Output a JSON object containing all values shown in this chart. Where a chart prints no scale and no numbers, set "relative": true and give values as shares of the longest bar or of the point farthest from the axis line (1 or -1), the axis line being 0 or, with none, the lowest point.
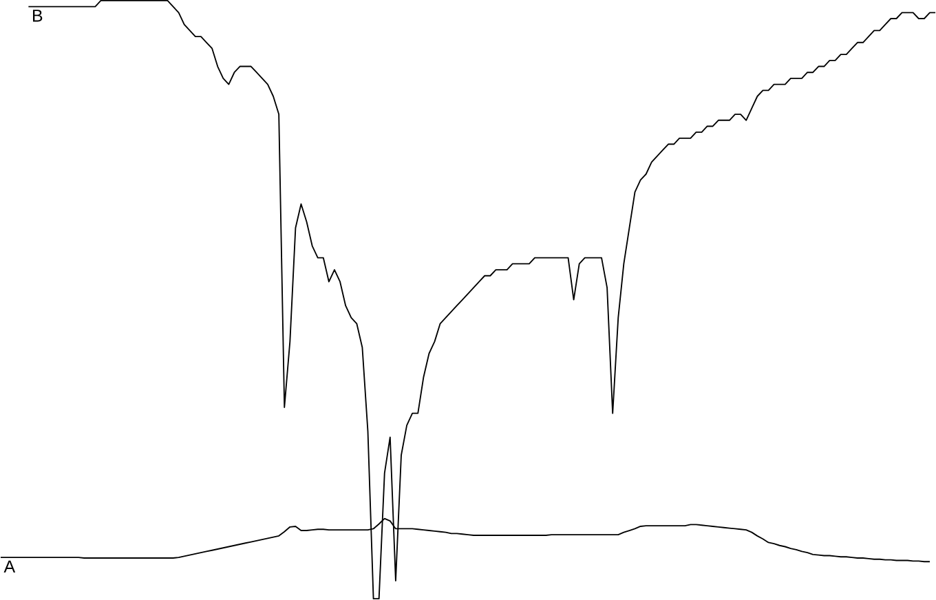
{
  "chart_data": {
    "type": "line",
    "relative": true,
    "legend": false,
    "marker": "none",
    "line_style": "solid",
    "categories": [
      null,
      null,
      null,
      null,
      null,
      null,
      null,
      null,
      null,
      null,
      null,
      null,
      null,
      null,
      null,
      null,
      null,
      null,
      null,
      null,
      null,
      null,
      null,
      null,
      null,
      null,
      null,
      null,
      null,
      null,
      null,
      null,
      null,
      null,
      null,
      null,
      null,
      null,
      null,
      null,
      null,
      null,
      null,
      null,
      null,
      null,
      null,
      null,
      null,
      null,
      null,
      null,
      null,
      null,
      null,
      null,
      null,
      null,
      null,
      null,
      null,
      null,
      null,
      null,
      null,
      null,
      null,
      null,
      null,
      null,
      null,
      null,
      null,
      null,
      null,
      null,
      null,
      null,
      null,
      null,
      null,
      null,
      null,
      null,
      null,
      null,
      null,
      null,
      null,
      null,
      null,
      null,
      null,
      null,
      null,
      null,
      null,
      null,
      null,
      null,
      null,
      null,
      null,
      null,
      null,
      null,
      null,
      null,
      null,
      null,
      null,
      null,
      null,
      null,
      null,
      null,
      null,
      null,
      null,
      null,
      null,
      null,
      null,
      null,
      null,
      null,
      null,
      null,
      null,
      null,
      null,
      null,
      null,
      null,
      null,
      null,
      null,
      null,
      null,
      null,
      null,
      null,
      null,
      null,
      null,
      null,
      null,
      null,
      null,
      null,
      null,
      null,
      null,
      null,
      null,
      null,
      null,
      null,
      null,
      null,
      null,
      null,
      null,
      null,
      null,
      null,
      null,
      null,
      null
    ],
    "series": [
      {
        "name": "B",
        "color": "#000000",
        "values": [
          null,
          null,
          null,
          null,
          null,
          0.99,
          0.99,
          0.99,
          0.99,
          0.99,
          0.99,
          0.99,
          0.99,
          0.99,
          0.99,
          0.99,
          0.99,
          0.99,
          1.0,
          1.0,
          1.0,
          1.0,
          1.0,
          1.0,
          1.0,
          1.0,
          1.0,
          1.0,
          1.0,
          1.0,
          1.0,
          0.99,
          0.98,
          0.96,
          0.95,
          0.94,
          0.94,
          0.93,
          0.92,
          0.89,
          0.87,
          0.86,
          0.88,
          0.89,
          0.89,
          0.89,
          0.88,
          0.87,
          0.86,
          0.84,
          0.81,
          0.32,
          0.43,
          0.62,
          0.66,
          0.63,
          0.59,
          0.57,
          0.57,
          0.53,
          0.55,
          0.53,
          0.49,
          0.47,
          0.46,
          0.42,
          0.28,
          0,
          0,
          0.21,
          0.27,
          0.03,
          0.24,
          0.29,
          0.31,
          0.31,
          0.37,
          0.41,
          0.43,
          0.46,
          0.47,
          0.48,
          0.49,
          0.5,
          0.51,
          0.52,
          0.53,
          0.54,
          0.54,
          0.55,
          0.55,
          0.55,
          0.56,
          0.56,
          0.56,
          0.56,
          0.57,
          0.57,
          0.57,
          0.57,
          0.57,
          0.57,
          0.57,
          0.5,
          0.56,
          0.57,
          0.57,
          0.57,
          0.57,
          0.52,
          0.31,
          0.47,
          0.56,
          0.62,
          0.68,
          0.7,
          0.71,
          0.73,
          0.74,
          0.75,
          0.76,
          0.76,
          0.77,
          0.77,
          0.77,
          0.78,
          0.78,
          0.79,
          0.79,
          0.8,
          0.8,
          0.8,
          0.81,
          0.81,
          0.8,
          0.82,
          0.84,
          0.85,
          0.85,
          0.86,
          0.86,
          0.86,
          0.87,
          0.87,
          0.87,
          0.88,
          0.88,
          0.89,
          0.89,
          0.9,
          0.9,
          0.91,
          0.91,
          0.92,
          0.93,
          0.93,
          0.94,
          0.95,
          0.95,
          0.96,
          0.97,
          0.97,
          0.98,
          0.98,
          0.98,
          0.97,
          0.97,
          0.98,
          0.98
        ]
      },
      {
        "name": "A",
        "color": "#000000",
        "values": [
          0.069,
          0.069,
          0.069,
          0.069,
          0.069,
          0.069,
          0.069,
          0.069,
          0.069,
          0.069,
          0.069,
          0.069,
          0.069,
          0.069,
          0.069,
          0.068,
          0.068,
          0.068,
          0.068,
          0.068,
          0.068,
          0.068,
          0.068,
          0.068,
          0.068,
          0.068,
          0.068,
          0.068,
          0.068,
          0.068,
          0.068,
          0.068,
          0.069,
          0.071,
          0.073,
          0.075,
          0.077,
          0.079,
          0.081,
          0.083,
          0.085,
          0.087,
          0.089,
          0.091,
          0.093,
          0.095,
          0.097,
          0.099,
          0.101,
          0.103,
          0.105,
          0.112,
          0.12,
          0.121,
          0.114,
          0.114,
          0.115,
          0.116,
          0.116,
          0.115,
          0.115,
          0.115,
          0.115,
          0.115,
          0.115,
          0.115,
          0.115,
          0.117,
          0.125,
          0.134,
          0.13,
          0.117,
          0.117,
          0.117,
          0.117,
          0.116,
          0.115,
          0.114,
          0.113,
          0.112,
          0.111,
          0.109,
          0.109,
          0.108,
          0.107,
          0.106,
          0.106,
          0.106,
          0.106,
          0.106,
          0.106,
          0.106,
          0.106,
          0.106,
          0.106,
          0.106,
          0.106,
          0.106,
          0.106,
          0.107,
          0.107,
          0.107,
          0.107,
          0.107,
          0.107,
          0.107,
          0.107,
          0.107,
          0.107,
          0.107,
          0.107,
          0.107,
          0.111,
          0.114,
          0.117,
          0.121,
          0.122,
          0.122,
          0.122,
          0.122,
          0.122,
          0.122,
          0.122,
          0.122,
          0.124,
          0.124,
          0.123,
          0.122,
          0.121,
          0.12,
          0.119,
          0.118,
          0.117,
          0.116,
          0.115,
          0.111,
          0.105,
          0.1,
          0.094,
          0.092,
          0.089,
          0.087,
          0.084,
          0.082,
          0.079,
          0.077,
          0.074,
          0.073,
          0.072,
          0.072,
          0.071,
          0.07,
          0.07,
          0.069,
          0.068,
          0.068,
          0.067,
          0.066,
          0.066,
          0.065,
          0.065,
          0.064,
          0.064,
          0.064,
          0.063,
          0.063,
          0.062,
          0.062,
          null
        ]
      }
    ]
  }
}
